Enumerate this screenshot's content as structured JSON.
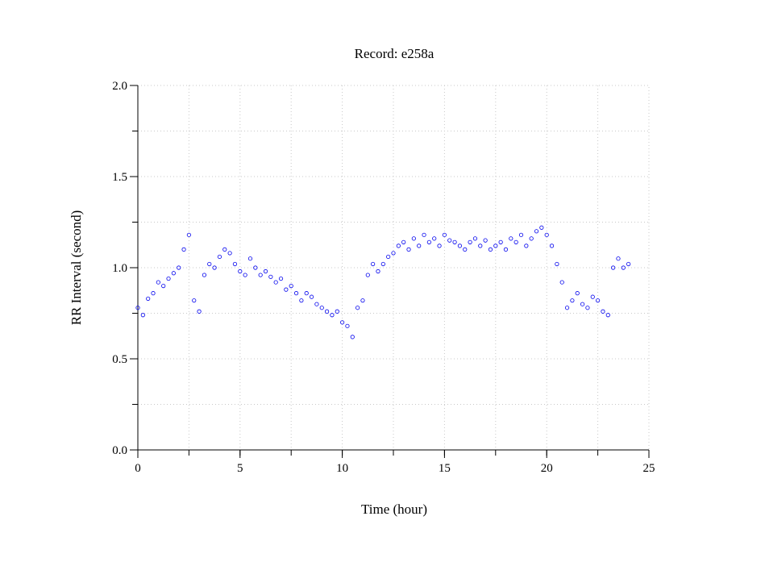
{
  "chart_data": {
    "type": "scatter",
    "title": "Record:  e258a",
    "xlabel": "Time (hour)",
    "ylabel": "RR Interval (second)",
    "xlim": [
      0,
      25
    ],
    "ylim": [
      0,
      2
    ],
    "xticks": [
      0,
      5,
      10,
      15,
      20,
      25
    ],
    "xtick_labels": [
      "0",
      "5",
      "10",
      "15",
      "20",
      "25"
    ],
    "yticks": [
      0,
      0.5,
      1,
      1.5,
      2
    ],
    "ytick_labels": [
      "0.0",
      "0.5",
      "1.0",
      "1.5",
      "2.0"
    ],
    "grid": true,
    "marker_color": "#0000ee",
    "series": [
      {
        "name": "",
        "x": [
          0.0,
          0.25,
          0.5,
          0.75,
          1.0,
          1.25,
          1.5,
          1.75,
          2.0,
          2.25,
          2.5,
          2.75,
          3.0,
          3.25,
          3.5,
          3.75,
          4.0,
          4.25,
          4.5,
          4.75,
          5.0,
          5.25,
          5.5,
          5.75,
          6.0,
          6.25,
          6.5,
          6.75,
          7.0,
          7.25,
          7.5,
          7.75,
          8.0,
          8.25,
          8.5,
          8.75,
          9.0,
          9.25,
          9.5,
          9.75,
          10.0,
          10.25,
          10.5,
          10.75,
          11.0,
          11.25,
          11.5,
          11.75,
          12.0,
          12.25,
          12.5,
          12.75,
          13.0,
          13.25,
          13.5,
          13.75,
          14.0,
          14.25,
          14.5,
          14.75,
          15.0,
          15.25,
          15.5,
          15.75,
          16.0,
          16.25,
          16.5,
          16.75,
          17.0,
          17.25,
          17.5,
          17.75,
          18.0,
          18.25,
          18.5,
          18.75,
          19.0,
          19.25,
          19.5,
          19.75,
          20.0,
          20.25,
          20.5,
          20.75,
          21.0,
          21.25,
          21.5,
          21.75,
          22.0,
          22.25,
          22.5,
          22.75,
          23.0,
          23.25,
          23.5,
          23.75,
          24.0
        ],
        "y": [
          0.78,
          0.74,
          0.83,
          0.86,
          0.92,
          0.9,
          0.94,
          0.97,
          1.0,
          1.1,
          1.18,
          0.82,
          0.76,
          0.96,
          1.02,
          1.0,
          1.06,
          1.1,
          1.08,
          1.02,
          0.98,
          0.96,
          1.05,
          1.0,
          0.96,
          0.98,
          0.95,
          0.92,
          0.94,
          0.88,
          0.9,
          0.86,
          0.82,
          0.86,
          0.84,
          0.8,
          0.78,
          0.76,
          0.74,
          0.76,
          0.7,
          0.68,
          0.62,
          0.78,
          0.82,
          0.96,
          1.02,
          0.98,
          1.02,
          1.06,
          1.08,
          1.12,
          1.14,
          1.1,
          1.16,
          1.12,
          1.18,
          1.14,
          1.16,
          1.12,
          1.18,
          1.15,
          1.14,
          1.12,
          1.1,
          1.14,
          1.16,
          1.12,
          1.15,
          1.1,
          1.12,
          1.14,
          1.1,
          1.16,
          1.14,
          1.18,
          1.12,
          1.16,
          1.2,
          1.22,
          1.18,
          1.12,
          1.02,
          0.92,
          0.78,
          0.82,
          0.86,
          0.8,
          0.78,
          0.84,
          0.82,
          0.76,
          0.74,
          1.0,
          1.05,
          1.0,
          1.02
        ]
      }
    ]
  }
}
